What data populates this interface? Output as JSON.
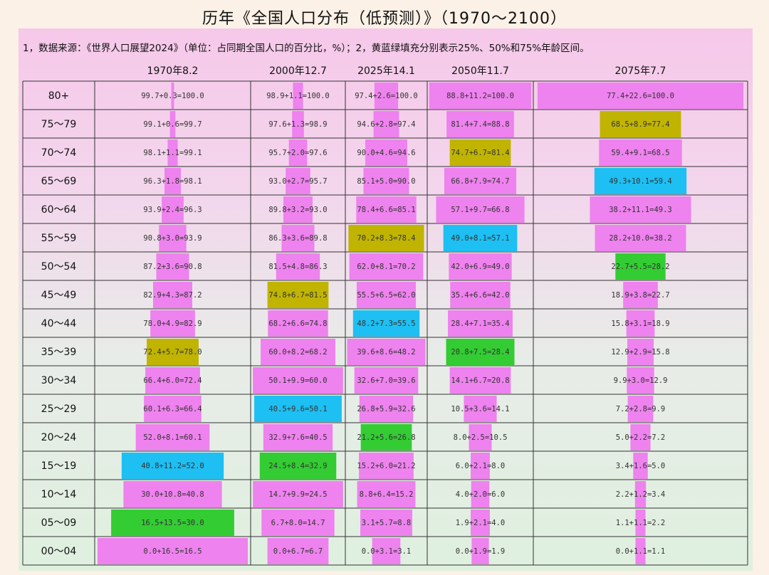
{
  "title": "历年《全国人口分布（低预测）》（1970～2100）",
  "subtitle": "1，数据来源：《世界人口展望2024》（单位：占同期全国人口的百分比，%）；2，黄蓝绿填充分别表示25%、50%和75%年龄区间。",
  "colors": {
    "bar": "#ee82ee",
    "q25": "#c0b400",
    "q50": "#1ebff2",
    "q75": "#33cc33"
  },
  "chart_data": {
    "type": "bar",
    "age_groups": [
      "80+",
      "75～79",
      "70～74",
      "65～69",
      "60～64",
      "55～59",
      "50～54",
      "45～49",
      "40～44",
      "35～39",
      "30～34",
      "25～29",
      "20～24",
      "15～19",
      "10～14",
      "05～09",
      "00～04"
    ],
    "years": [
      {
        "header": "1970年8.2",
        "values": [
          0.3,
          0.6,
          1.1,
          1.8,
          2.4,
          3.0,
          3.6,
          4.3,
          4.9,
          5.7,
          6.0,
          6.3,
          8.1,
          11.2,
          10.8,
          13.5,
          16.5
        ],
        "labels": [
          "99.7+0.3=100.0",
          "99.1+0.6=99.7",
          "98.1+1.1=99.1",
          "96.3+1.8=98.1",
          "93.9+2.4=96.3",
          "90.8+3.0=93.9",
          "87.2+3.6=90.8",
          "82.9+4.3=87.2",
          "78.0+4.9=82.9",
          "72.4+5.7=78.0",
          "66.4+6.0=72.4",
          "60.1+6.3=66.4",
          "52.0+8.1=60.1",
          "40.8+11.2=52.0",
          "30.0+10.8=40.8",
          "16.5+13.5=30.0",
          "0.0+16.5=16.5"
        ],
        "highlight": [
          "",
          "",
          "",
          "",
          "",
          "",
          "",
          "",
          "",
          "q25",
          "",
          "",
          "",
          "q50",
          "",
          "q75",
          ""
        ]
      },
      {
        "header": "2000年12.7",
        "values": [
          1.1,
          1.3,
          2.0,
          2.7,
          3.2,
          3.6,
          4.8,
          6.7,
          6.6,
          8.2,
          9.9,
          9.6,
          7.6,
          8.4,
          9.9,
          8.0,
          6.7
        ],
        "labels": [
          "98.9+1.1=100.0",
          "97.6+1.3=98.9",
          "95.7+2.0=97.6",
          "93.0+2.7=95.7",
          "89.8+3.2=93.0",
          "86.3+3.6=89.8",
          "81.5+4.8=86.3",
          "74.8+6.7=81.5",
          "68.2+6.6=74.8",
          "60.0+8.2=68.2",
          "50.1+9.9=60.0",
          "40.5+9.6=50.1",
          "32.9+7.6=40.5",
          "24.5+8.4=32.9",
          "14.7+9.9=24.5",
          "6.7+8.0=14.7",
          "0.0+6.7=6.7"
        ],
        "highlight": [
          "",
          "",
          "",
          "",
          "",
          "",
          "",
          "q25",
          "",
          "",
          "",
          "q50",
          "",
          "q75",
          "",
          "",
          ""
        ]
      },
      {
        "header": "2025年14.1",
        "values": [
          2.6,
          2.8,
          4.6,
          5.0,
          6.6,
          8.3,
          8.1,
          6.5,
          7.3,
          8.6,
          7.0,
          5.9,
          5.6,
          6.0,
          6.4,
          5.7,
          3.1
        ],
        "labels": [
          "97.4+2.6=100.0",
          "94.6+2.8=97.4",
          "90.0+4.6=94.6",
          "85.1+5.0=90.0",
          "78.4+6.6=85.1",
          "70.2+8.3=78.4",
          "62.0+8.1=70.2",
          "55.5+6.5=62.0",
          "48.2+7.3=55.5",
          "39.6+8.6=48.2",
          "32.6+7.0=39.6",
          "26.8+5.9=32.6",
          "21.2+5.6=26.8",
          "15.2+6.0=21.2",
          "8.8+6.4=15.2",
          "3.1+5.7=8.8",
          "0.0+3.1=3.1"
        ],
        "highlight": [
          "",
          "",
          "",
          "",
          "",
          "q25",
          "",
          "",
          "q50",
          "",
          "",
          "",
          "q75",
          "",
          "",
          "",
          ""
        ]
      },
      {
        "header": "2050年11.7",
        "values": [
          11.2,
          7.4,
          6.7,
          7.9,
          9.7,
          8.1,
          6.9,
          6.6,
          7.1,
          7.5,
          6.7,
          3.6,
          2.5,
          2.1,
          2.0,
          2.1,
          1.9
        ],
        "labels": [
          "88.8+11.2=100.0",
          "81.4+7.4=88.8",
          "74.7+6.7=81.4",
          "66.8+7.9=74.7",
          "57.1+9.7=66.8",
          "49.0+8.1=57.1",
          "42.0+6.9=49.0",
          "35.4+6.6=42.0",
          "28.4+7.1=35.4",
          "20.8+7.5=28.4",
          "14.1+6.7=20.8",
          "10.5+3.6=14.1",
          "8.0+2.5=10.5",
          "6.0+2.1=8.0",
          "4.0+2.0=6.0",
          "1.9+2.1=4.0",
          "0.0+1.9=1.9"
        ],
        "highlight": [
          "",
          "",
          "q25",
          "",
          "",
          "q50",
          "",
          "",
          "",
          "q75",
          "",
          "",
          "",
          "",
          "",
          "",
          ""
        ]
      },
      {
        "header": "2075年7.7",
        "values": [
          22.6,
          8.9,
          9.1,
          10.1,
          11.1,
          10.0,
          5.5,
          3.8,
          3.1,
          2.9,
          3.0,
          2.8,
          2.2,
          1.6,
          1.2,
          1.1,
          1.1
        ],
        "labels": [
          "77.4+22.6=100.0",
          "68.5+8.9=77.4",
          "59.4+9.1=68.5",
          "49.3+10.1=59.4",
          "38.2+11.1=49.3",
          "28.2+10.0=38.2",
          "22.7+5.5=28.2",
          "18.9+3.8=22.7",
          "15.8+3.1=18.9",
          "12.9+2.9=15.8",
          "9.9+3.0=12.9",
          "7.2+2.8=9.9",
          "5.0+2.2=7.2",
          "3.4+1.6=5.0",
          "2.2+1.2=3.4",
          "1.1+1.1=2.2",
          "0.0+1.1=1.1"
        ],
        "highlight": [
          "",
          "q25",
          "",
          "q50",
          "",
          "",
          "q75",
          "",
          "",
          "",
          "",
          "",
          "",
          "",
          "",
          "",
          ""
        ]
      }
    ]
  }
}
